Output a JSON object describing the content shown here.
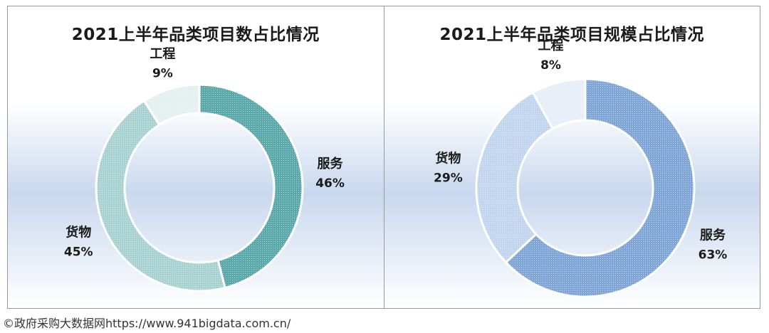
{
  "chart_data": [
    {
      "type": "pie",
      "variant": "donut",
      "title": "2021上半年品类项目数占比情况",
      "categories": [
        "服务",
        "货物",
        "工程"
      ],
      "values": [
        46,
        45,
        9
      ],
      "value_labels": [
        "46%",
        "45%",
        "9%"
      ],
      "colors": [
        "#5aa8aa",
        "#a8d2d2",
        "#e4f0f0"
      ],
      "legend": "none"
    },
    {
      "type": "pie",
      "variant": "donut",
      "title": "2021上半年品类项目规模占比情况",
      "categories": [
        "服务",
        "货物",
        "工程"
      ],
      "values": [
        63,
        29,
        8
      ],
      "value_labels": [
        "63%",
        "29%",
        "8%"
      ],
      "colors": [
        "#7fa6d6",
        "#c2d5ee",
        "#e6eef8"
      ],
      "legend": "none"
    }
  ],
  "footer": {
    "copyright": "©政府采购大数据网https://www.941bigdata.com.cn/"
  }
}
